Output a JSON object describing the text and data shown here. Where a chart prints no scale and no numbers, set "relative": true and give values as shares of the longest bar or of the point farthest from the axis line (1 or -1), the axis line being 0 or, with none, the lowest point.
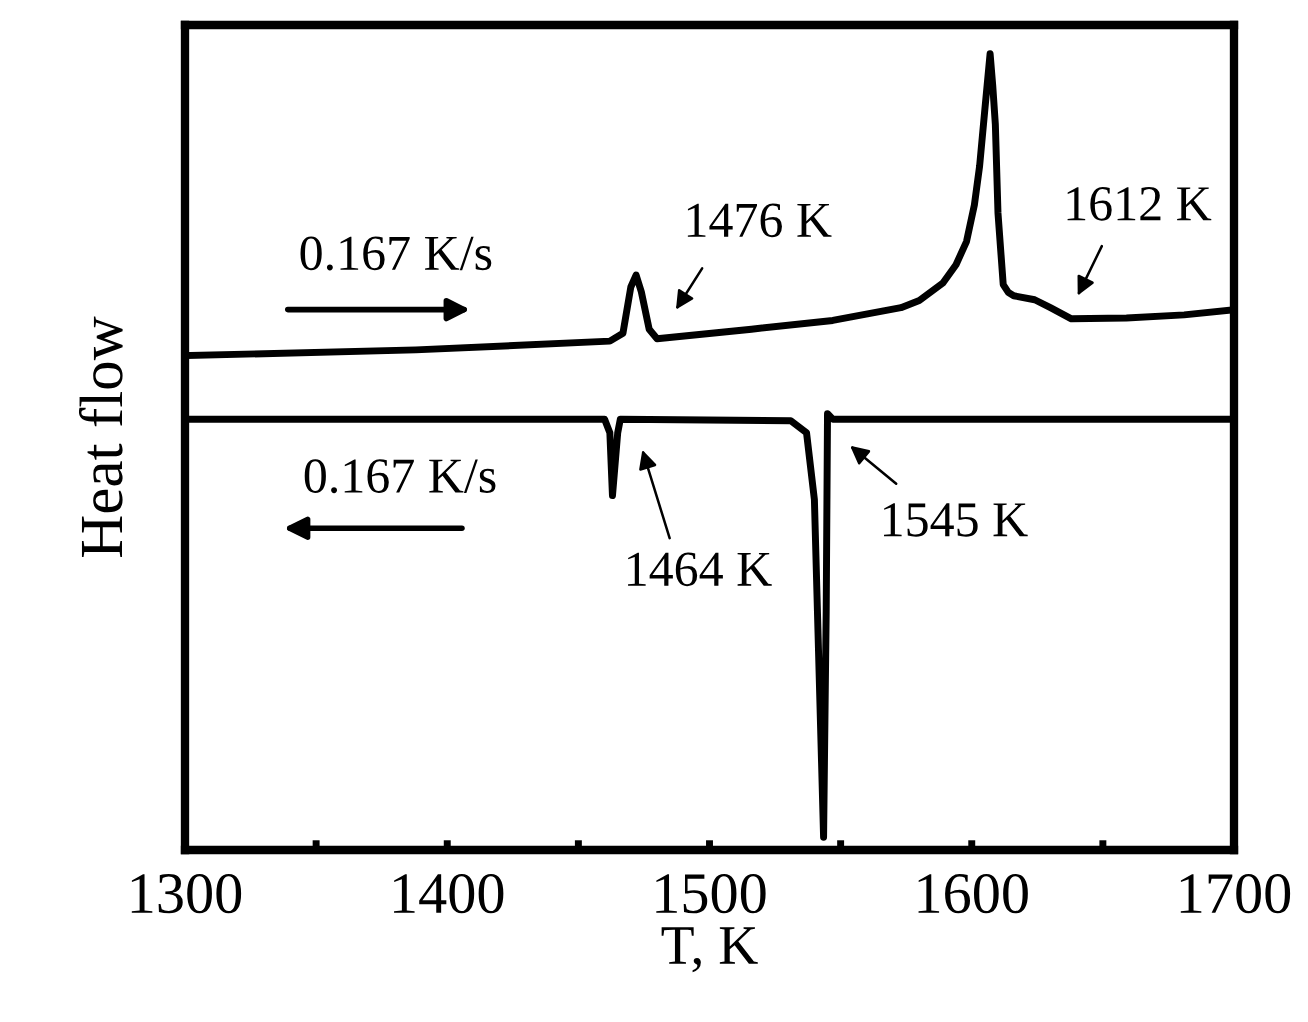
{
  "chart_data": {
    "type": "line",
    "relative": true,
    "xlabel": "T, K",
    "ylabel": "Heat flow",
    "xlim": [
      1300,
      1700
    ],
    "xticks": [
      1300,
      {
        "value": 1350,
        "label": null
      },
      1400,
      {
        "value": 1450,
        "label": null
      },
      1500,
      {
        "value": 1550,
        "label": null
      },
      1600,
      {
        "value": 1650,
        "label": null
      },
      1700
    ],
    "grid": false,
    "marker": "none",
    "line_style": "solid",
    "series": [
      {
        "color": "#000000",
        "x": [
          1302,
          1388,
          1462,
          1467,
          1470,
          1472,
          1474,
          1477,
          1480,
          1516,
          1547,
          1573,
          1580,
          1589,
          1594,
          1598,
          1601,
          1603,
          1605,
          1607,
          1608,
          1609,
          1610,
          1612,
          1614,
          1616,
          1624,
          1630,
          1638,
          1659,
          1681,
          1699
        ],
        "values": [
          0.621,
          0.628,
          0.639,
          0.649,
          0.707,
          0.722,
          0.701,
          0.654,
          0.642,
          0.654,
          0.665,
          0.681,
          0.69,
          0.712,
          0.735,
          0.764,
          0.81,
          0.859,
          0.93,
          1.0,
          0.96,
          0.911,
          0.8,
          0.71,
          0.7,
          0.696,
          0.691,
          0.681,
          0.667,
          0.668,
          0.672,
          0.678
        ]
      },
      {
        "color": "#000000",
        "x": [
          1302,
          1460,
          1462,
          1463,
          1465,
          1466,
          1531,
          1537,
          1540,
          1543.5,
          1544.5,
          1545,
          1547,
          1699
        ],
        "values": [
          0.541,
          0.541,
          0.524,
          0.445,
          0.524,
          0.541,
          0.539,
          0.524,
          0.44,
          0.016,
          0.3,
          0.548,
          0.541,
          0.541
        ]
      }
    ],
    "annotations": [
      "0.167 K/s",
      "0.167 K/s",
      "1476 K",
      "1612 K",
      "1464 K",
      "1545 K"
    ]
  }
}
